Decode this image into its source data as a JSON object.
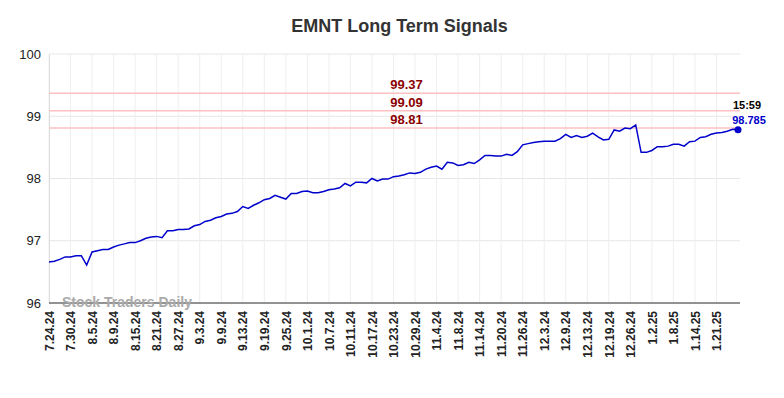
{
  "chart_data": {
    "type": "line",
    "title": "EMNT Long Term Signals",
    "annotations": [
      "Stock Traders Daily",
      "15:59"
    ],
    "levels": [
      99.37,
      99.09,
      98.81
    ],
    "color": "#0000cc",
    "grid": true,
    "ylim": [
      96,
      100
    ],
    "yticks": [
      96,
      97,
      98,
      99,
      100
    ],
    "categories": [
      "7.24.24",
      null,
      null,
      null,
      "7.30.24",
      null,
      null,
      null,
      "8.5.24",
      null,
      null,
      null,
      "8.9.24",
      null,
      null,
      null,
      "8.15.24",
      null,
      null,
      null,
      "8.21.24",
      null,
      null,
      null,
      "8.27.24",
      null,
      null,
      null,
      "9.3.24",
      null,
      null,
      null,
      "9.9.24",
      null,
      null,
      null,
      "9.13.24",
      null,
      null,
      null,
      "9.19.24",
      null,
      null,
      null,
      "9.25.24",
      null,
      null,
      null,
      "10.1.24",
      null,
      null,
      null,
      "10.7.24",
      null,
      null,
      null,
      "10.11.24",
      null,
      null,
      null,
      "10.17.24",
      null,
      null,
      null,
      "10.23.24",
      null,
      null,
      null,
      "10.29.24",
      null,
      null,
      null,
      "11.4.24",
      null,
      null,
      null,
      "11.8.24",
      null,
      null,
      null,
      "11.14.24",
      null,
      null,
      null,
      "11.20.24",
      null,
      null,
      null,
      "11.26.24",
      null,
      null,
      null,
      "12.3.24",
      null,
      null,
      null,
      "12.9.24",
      null,
      null,
      null,
      "12.13.24",
      null,
      null,
      null,
      "12.19.24",
      null,
      null,
      null,
      "12.26.24",
      null,
      null,
      null,
      "1.2.25",
      null,
      null,
      null,
      "1.8.25",
      null,
      null,
      null,
      "1.14.25",
      null,
      null,
      null,
      "1.21.25",
      null,
      null,
      null,
      null
    ],
    "values": [
      96.66,
      96.67,
      96.7,
      96.74,
      96.74,
      96.76,
      96.76,
      96.61,
      96.82,
      96.84,
      96.86,
      96.86,
      96.9,
      96.93,
      96.95,
      96.97,
      96.97,
      97.0,
      97.04,
      97.06,
      97.07,
      97.05,
      97.16,
      97.16,
      97.18,
      97.18,
      97.19,
      97.24,
      97.26,
      97.31,
      97.33,
      97.37,
      97.39,
      97.43,
      97.44,
      97.47,
      97.55,
      97.52,
      97.57,
      97.61,
      97.66,
      97.68,
      97.73,
      97.7,
      97.67,
      97.76,
      97.76,
      97.79,
      97.8,
      97.77,
      97.77,
      97.79,
      97.82,
      97.83,
      97.85,
      97.92,
      97.88,
      97.94,
      97.94,
      97.93,
      98.0,
      97.96,
      97.99,
      97.99,
      98.03,
      98.04,
      98.06,
      98.09,
      98.08,
      98.1,
      98.15,
      98.18,
      98.2,
      98.15,
      98.26,
      98.25,
      98.21,
      98.22,
      98.26,
      98.24,
      98.3,
      98.37,
      98.37,
      98.36,
      98.36,
      98.39,
      98.37,
      98.43,
      98.54,
      98.56,
      98.58,
      98.59,
      98.6,
      98.6,
      98.6,
      98.64,
      98.71,
      98.66,
      98.69,
      98.66,
      98.68,
      98.73,
      98.67,
      98.62,
      98.63,
      98.78,
      98.76,
      98.81,
      98.8,
      98.86,
      98.42,
      98.42,
      98.45,
      98.51,
      98.51,
      98.52,
      98.55,
      98.55,
      98.52,
      98.59,
      98.6,
      98.66,
      98.67,
      98.71,
      98.73,
      98.74,
      98.76,
      98.79,
      98.785
    ]
  }
}
